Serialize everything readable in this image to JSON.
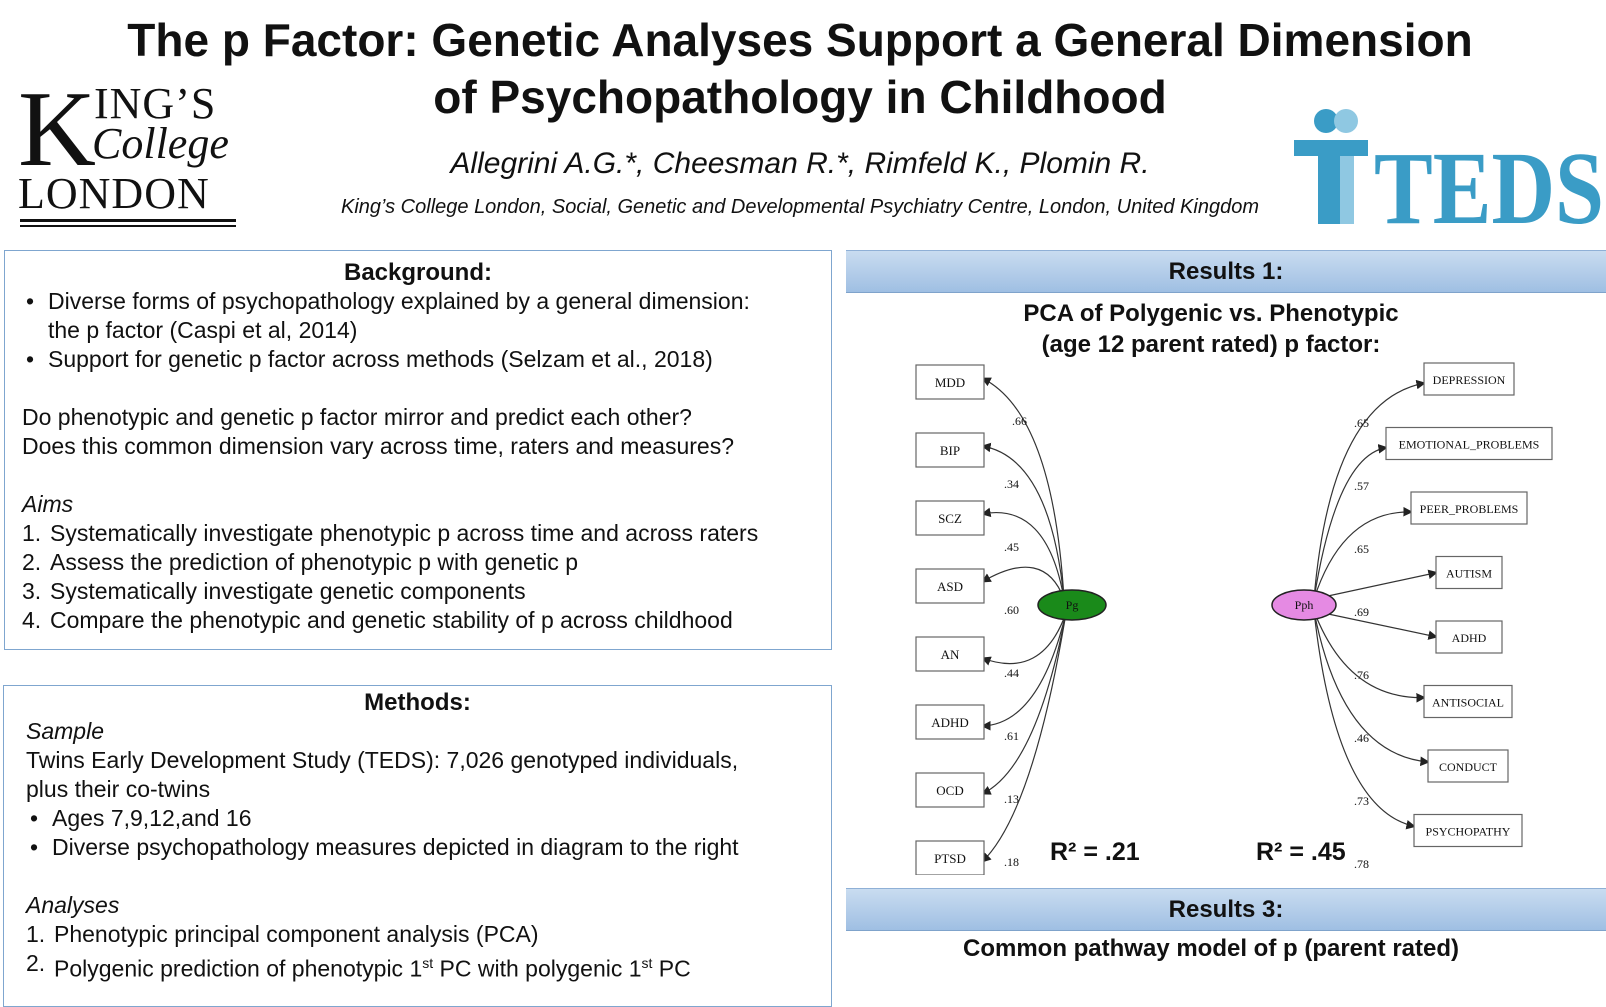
{
  "header": {
    "title_line1": "The p Factor: Genetic Analyses Support a General Dimension",
    "title_line2": "of Psychopathology in Childhood",
    "authors": "Allegrini A.G.*, Cheesman R.*, Rimfeld K., Plomin R.",
    "affiliation": "King’s College London, Social, Genetic and Developmental Psychiatry Centre, London, United Kingdom",
    "logo_left": {
      "line1": "ING’S",
      "initial": "K",
      "line2": "College",
      "line3": "LONDON"
    },
    "logo_right": {
      "text": "TEDS",
      "color": "#3a9cc6",
      "light_color": "#8fc8e2"
    }
  },
  "background": {
    "title": "Background:",
    "bullets": [
      "Diverse forms of psychopathology explained by a general dimension:",
      "the p factor (Caspi et al, 2014)",
      "Support for genetic p factor across methods (Selzam et al., 2018)"
    ],
    "questions": [
      "Do phenotypic and genetic p factor mirror and predict each other?",
      "Does this common dimension vary across time, raters and measures?"
    ],
    "aims_heading": "Aims",
    "aims": [
      {
        "n": "1.",
        "text": "Systematically investigate phenotypic p across time and across raters"
      },
      {
        "n": "2.",
        "text": "Assess the prediction of phenotypic p with genetic p"
      },
      {
        "n": "3.",
        "text": "Systematically investigate genetic components"
      },
      {
        "n": "4.",
        "text": "Compare the phenotypic and genetic stability of p across childhood"
      }
    ]
  },
  "methods": {
    "title": "Methods:",
    "sample_heading": "Sample",
    "sample_line1": "Twins Early Development Study (TEDS): 7,026 genotyped individuals,",
    "sample_line2": "plus their co-twins",
    "bullets": [
      "Ages 7,9,12,and 16",
      "Diverse psychopathology measures depicted in diagram to the right"
    ],
    "analyses_heading": "Analyses",
    "analyses": [
      {
        "n": "1.",
        "text": "Phenotypic principal component analysis (PCA)"
      },
      {
        "n": "2.",
        "text_a": "Polygenic prediction of phenotypic 1",
        "sup1": "st",
        "text_b": " PC with polygenic 1",
        "sup2": "st",
        "text_c": " PC"
      }
    ]
  },
  "results1": {
    "band": "Results 1:",
    "subtitle_line1": "PCA of Polygenic vs. Phenotypic",
    "subtitle_line2": "(age 12 parent rated) p factor:",
    "r2_left": "R² = .21",
    "r2_right": "R² = .45"
  },
  "results3": {
    "band": "Results 3:",
    "subtitle": "Common pathway model of p (parent rated)"
  },
  "diagram": {
    "left_latent": {
      "label": "Pg",
      "color": "#1a8a1a"
    },
    "right_latent": {
      "label": "Pph",
      "color": "#e58ae3"
    },
    "left_nodes": [
      {
        "label": "MDD",
        "loading": ".66"
      },
      {
        "label": "BIP",
        "loading": ".34"
      },
      {
        "label": "SCZ",
        "loading": ".45"
      },
      {
        "label": "ASD",
        "loading": ".60"
      },
      {
        "label": "AN",
        "loading": ".44"
      },
      {
        "label": "ADHD",
        "loading": ".61"
      },
      {
        "label": "OCD",
        "loading": ".13"
      },
      {
        "label": "PTSD",
        "loading": ".18"
      }
    ],
    "right_nodes": [
      {
        "label": "DEPRESSION",
        "loading": ".65"
      },
      {
        "label": "EMOTIONAL_PROBLEMS",
        "loading": ".57"
      },
      {
        "label": "PEER_PROBLEMS",
        "loading": ".65"
      },
      {
        "label": "AUTISM",
        "loading": ".69"
      },
      {
        "label": "ADHD",
        "loading": ".76"
      },
      {
        "label": "ANTISOCIAL",
        "loading": ".46"
      },
      {
        "label": "CONDUCT",
        "loading": ".73"
      },
      {
        "label": "PSYCHOPATHY",
        "loading": ".78"
      }
    ]
  }
}
